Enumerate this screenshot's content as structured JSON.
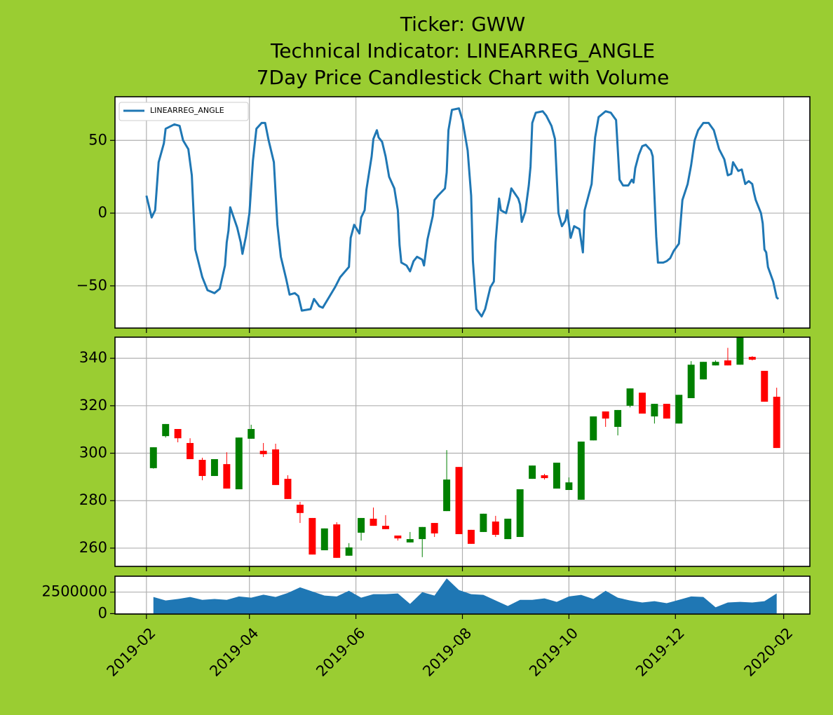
{
  "chart_data": [
    {
      "type": "line",
      "title": [
        "Ticker: GWW",
        "Technical Indicator: LINEARREG_ANGLE",
        "7Day Price Candlestick Chart with Volume"
      ],
      "xlim": [
        "2019-01-14",
        "2020-02-16"
      ],
      "ylim": [
        -79,
        80
      ],
      "yticks": [
        {
          "value": -50,
          "label": "−50"
        },
        0,
        50
      ],
      "grid": true,
      "legend": "upper left",
      "x": [
        "2019-02-01",
        "2019-02-04",
        "2019-02-06",
        "2019-02-08",
        "2019-02-11",
        "2019-02-12",
        "2019-02-17",
        "2019-02-20",
        "2019-02-22",
        "2019-02-25",
        "2019-02-27",
        "2019-03-01",
        "2019-03-05",
        "2019-03-08",
        "2019-03-12",
        "2019-03-15",
        "2019-03-18",
        "2019-03-19",
        "2019-03-20",
        "2019-03-21",
        "2019-03-23",
        "2019-03-25",
        "2019-03-27",
        "2019-03-28",
        "2019-03-30",
        "2019-04-01",
        "2019-04-03",
        "2019-04-05",
        "2019-04-08",
        "2019-04-10",
        "2019-04-12",
        "2019-04-15",
        "2019-04-17",
        "2019-04-19",
        "2019-04-22",
        "2019-04-24",
        "2019-04-27",
        "2019-04-29",
        "2019-05-01",
        "2019-05-06",
        "2019-05-08",
        "2019-05-11",
        "2019-05-13",
        "2019-05-16",
        "2019-05-20",
        "2019-05-23",
        "2019-05-28",
        "2019-05-29",
        "2019-05-31",
        "2019-06-03",
        "2019-06-04",
        "2019-06-06",
        "2019-06-07",
        "2019-06-10",
        "2019-06-11",
        "2019-06-13",
        "2019-06-14",
        "2019-06-16",
        "2019-06-18",
        "2019-06-20",
        "2019-06-23",
        "2019-06-25",
        "2019-06-26",
        "2019-06-27",
        "2019-06-30",
        "2019-07-02",
        "2019-07-04",
        "2019-07-06",
        "2019-07-09",
        "2019-07-10",
        "2019-07-12",
        "2019-07-15",
        "2019-07-16",
        "2019-07-18",
        "2019-07-22",
        "2019-07-23",
        "2019-07-24",
        "2019-07-26",
        "2019-07-30",
        "2019-08-01",
        "2019-08-04",
        "2019-08-06",
        "2019-08-07",
        "2019-08-09",
        "2019-08-12",
        "2019-08-14",
        "2019-08-17",
        "2019-08-19",
        "2019-08-20",
        "2019-08-22",
        "2019-08-23",
        "2019-08-26",
        "2019-08-28",
        "2019-08-29",
        "2019-09-02",
        "2019-09-03",
        "2019-09-04",
        "2019-09-06",
        "2019-09-08",
        "2019-09-09",
        "2019-09-10",
        "2019-09-12",
        "2019-09-16",
        "2019-09-18",
        "2019-09-21",
        "2019-09-23",
        "2019-09-25",
        "2019-09-27",
        "2019-09-29",
        "2019-09-30",
        "2019-10-02",
        "2019-10-04",
        "2019-10-07",
        "2019-10-09",
        "2019-10-10",
        "2019-10-14",
        "2019-10-16",
        "2019-10-18",
        "2019-10-20",
        "2019-10-22",
        "2019-10-25",
        "2019-10-28",
        "2019-10-30",
        "2019-11-01",
        "2019-11-04",
        "2019-11-06",
        "2019-11-07",
        "2019-11-08",
        "2019-11-10",
        "2019-11-12",
        "2019-11-14",
        "2019-11-17",
        "2019-11-18",
        "2019-11-20",
        "2019-11-21",
        "2019-11-24",
        "2019-11-26",
        "2019-11-28",
        "2019-11-30",
        "2019-12-03",
        "2019-12-05",
        "2019-12-08",
        "2019-12-10",
        "2019-12-12",
        "2019-12-14",
        "2019-12-17",
        "2019-12-20",
        "2019-12-23",
        "2019-12-26",
        "2019-12-29",
        "2019-12-31",
        "2020-01-02",
        "2020-01-03",
        "2020-01-06",
        "2020-01-08",
        "2020-01-10",
        "2020-01-12",
        "2020-01-14",
        "2020-01-15",
        "2020-01-16",
        "2020-01-19",
        "2020-01-20",
        "2020-01-21",
        "2020-01-22",
        "2020-01-23",
        "2020-01-26",
        "2020-01-28",
        "2020-01-29"
      ],
      "series": [
        {
          "name": "LINEARREG_ANGLE",
          "color": "#1f77b4",
          "values": [
            12,
            -3,
            2,
            35,
            48,
            58,
            61,
            60,
            50,
            44,
            26,
            -25,
            -44,
            -53,
            -55,
            -52,
            -36,
            -20,
            -12,
            4,
            -3,
            -10,
            -20,
            -28,
            -16,
            0,
            36,
            58,
            62,
            62,
            50,
            35,
            -8,
            -30,
            -45,
            -56,
            -55,
            -57,
            -67,
            -66,
            -59,
            -64,
            -65,
            -59,
            -51,
            -44,
            -37,
            -17,
            -8,
            -14,
            -3,
            2,
            16,
            39,
            51,
            57,
            52,
            49,
            39,
            25,
            17,
            2,
            -22,
            -34,
            -36,
            -40,
            -33,
            -30,
            -32,
            -36,
            -18,
            -2,
            9,
            12,
            17,
            28,
            57,
            71,
            72,
            64,
            43,
            12,
            -33,
            -66,
            -71,
            -66,
            -51,
            -47,
            -20,
            10,
            2,
            0,
            10,
            17,
            10,
            6,
            -6,
            1,
            19,
            32,
            62,
            69,
            70,
            67,
            60,
            51,
            0,
            -9,
            -5,
            2,
            -17,
            -9,
            -11,
            -27,
            2,
            20,
            52,
            66,
            68,
            70,
            69,
            64,
            23,
            19,
            19,
            23,
            21,
            31,
            40,
            46,
            47,
            43,
            39,
            -16,
            -34,
            -34,
            -33,
            -31,
            -26,
            -21,
            9,
            20,
            33,
            50,
            57,
            62,
            62,
            57,
            44,
            37,
            26,
            27,
            35,
            29,
            30,
            20,
            22,
            20,
            14,
            9,
            0,
            -7,
            -25,
            -27,
            -37,
            -47,
            -58,
            -59
          ]
        }
      ]
    },
    {
      "type": "candlestick",
      "xlim": [
        "2019-01-14",
        "2020-02-16"
      ],
      "ylim": [
        252.3,
        348.9
      ],
      "yticks": [
        260,
        280,
        300,
        320,
        340
      ],
      "grid": true,
      "up_color": "#008000",
      "down_color": "#ff0000",
      "x": [
        "2019-02-05",
        "2019-02-12",
        "2019-02-19",
        "2019-02-26",
        "2019-03-05",
        "2019-03-12",
        "2019-03-19",
        "2019-03-26",
        "2019-04-02",
        "2019-04-09",
        "2019-04-16",
        "2019-04-23",
        "2019-04-30",
        "2019-05-07",
        "2019-05-14",
        "2019-05-21",
        "2019-05-28",
        "2019-06-04",
        "2019-06-11",
        "2019-06-18",
        "2019-06-25",
        "2019-07-02",
        "2019-07-09",
        "2019-07-16",
        "2019-07-23",
        "2019-07-30",
        "2019-08-06",
        "2019-08-13",
        "2019-08-20",
        "2019-08-27",
        "2019-09-03",
        "2019-09-10",
        "2019-09-17",
        "2019-09-24",
        "2019-10-01",
        "2019-10-08",
        "2019-10-15",
        "2019-10-22",
        "2019-10-29",
        "2019-11-05",
        "2019-11-12",
        "2019-11-19",
        "2019-11-26",
        "2019-12-03",
        "2019-12-10",
        "2019-12-17",
        "2019-12-24",
        "2019-12-31",
        "2020-01-07",
        "2020-01-14",
        "2020-01-21",
        "2020-01-28"
      ],
      "open": [
        293.7,
        307.2,
        310.2,
        304.3,
        297.2,
        290.4,
        295.4,
        284.8,
        306.1,
        301.0,
        301.6,
        289.2,
        278.3,
        272.7,
        259.1,
        270.0,
        256.8,
        266.5,
        272.4,
        269.4,
        265.3,
        262.4,
        263.8,
        270.6,
        275.6,
        294.2,
        267.7,
        266.8,
        271.2,
        263.8,
        264.7,
        289.2,
        290.7,
        285.1,
        284.5,
        280.4,
        305.4,
        317.6,
        311.1,
        320.0,
        325.5,
        315.5,
        320.8,
        312.5,
        323.2,
        331.1,
        337.0,
        339.1,
        337.3,
        340.6,
        334.7,
        323.8
      ],
      "close": [
        302.5,
        312.3,
        306.3,
        297.5,
        290.4,
        297.5,
        285.1,
        306.6,
        310.2,
        299.6,
        286.6,
        280.7,
        274.8,
        257.3,
        268.3,
        255.9,
        260.3,
        272.7,
        269.4,
        268.0,
        264.1,
        263.8,
        268.9,
        266.2,
        288.9,
        265.9,
        261.8,
        274.5,
        265.6,
        272.4,
        284.8,
        294.8,
        289.5,
        296.0,
        287.7,
        304.9,
        315.5,
        314.6,
        318.2,
        327.3,
        316.7,
        320.8,
        314.6,
        324.6,
        337.3,
        338.5,
        338.5,
        337.0,
        350.0,
        339.4,
        321.7,
        302.2
      ],
      "high": [
        302.5,
        312.3,
        310.2,
        306.3,
        298.1,
        297.5,
        300.4,
        306.6,
        312.0,
        304.3,
        304.0,
        290.7,
        279.5,
        272.7,
        268.3,
        270.9,
        262.1,
        272.7,
        277.1,
        273.9,
        265.3,
        266.8,
        268.9,
        270.6,
        301.3,
        294.2,
        267.7,
        274.5,
        273.6,
        272.4,
        284.8,
        294.8,
        291.3,
        296.0,
        289.8,
        304.9,
        315.5,
        317.6,
        318.2,
        327.3,
        325.5,
        320.8,
        320.8,
        324.6,
        338.8,
        338.5,
        339.1,
        344.4,
        350.0,
        340.9,
        334.7,
        327.6
      ],
      "low": [
        293.5,
        306.6,
        304.6,
        297.5,
        288.6,
        290.4,
        285.1,
        284.8,
        306.1,
        298.4,
        286.6,
        280.7,
        270.6,
        257.3,
        259.1,
        255.9,
        256.8,
        263.2,
        269.4,
        268.0,
        263.2,
        262.4,
        256.2,
        264.7,
        275.6,
        265.9,
        261.8,
        266.8,
        264.7,
        263.8,
        264.7,
        289.2,
        288.9,
        285.1,
        284.5,
        280.4,
        305.4,
        311.1,
        307.5,
        319.3,
        316.7,
        312.5,
        314.6,
        312.5,
        323.2,
        331.1,
        337.0,
        337.0,
        337.3,
        339.1,
        321.7,
        302.2
      ]
    },
    {
      "type": "area",
      "xlim": [
        "2019-01-14",
        "2020-02-16"
      ],
      "ylim": [
        -50000,
        4350000
      ],
      "yticks": [
        0,
        2500000
      ],
      "xticks": [
        "2019-02",
        "2019-04",
        "2019-06",
        "2019-08",
        "2019-10",
        "2019-12",
        "2020-02"
      ],
      "grid": true,
      "color": "#1f77b4",
      "x": [
        "2019-02-05",
        "2019-02-12",
        "2019-02-19",
        "2019-02-26",
        "2019-03-05",
        "2019-03-12",
        "2019-03-19",
        "2019-03-26",
        "2019-04-02",
        "2019-04-09",
        "2019-04-16",
        "2019-04-23",
        "2019-04-30",
        "2019-05-07",
        "2019-05-14",
        "2019-05-21",
        "2019-05-28",
        "2019-06-04",
        "2019-06-11",
        "2019-06-18",
        "2019-06-25",
        "2019-07-02",
        "2019-07-09",
        "2019-07-16",
        "2019-07-23",
        "2019-07-30",
        "2019-08-06",
        "2019-08-13",
        "2019-08-20",
        "2019-08-27",
        "2019-09-03",
        "2019-09-10",
        "2019-09-17",
        "2019-09-24",
        "2019-10-01",
        "2019-10-08",
        "2019-10-15",
        "2019-10-22",
        "2019-10-29",
        "2019-11-05",
        "2019-11-12",
        "2019-11-19",
        "2019-11-26",
        "2019-12-03",
        "2019-12-10",
        "2019-12-17",
        "2019-12-24",
        "2019-12-31",
        "2020-01-07",
        "2020-01-14",
        "2020-01-21",
        "2020-01-28"
      ],
      "values": [
        1940000,
        1530000,
        1700000,
        1940000,
        1600000,
        1700000,
        1600000,
        2000000,
        1850000,
        2200000,
        1940000,
        2400000,
        3060000,
        2580000,
        2100000,
        2000000,
        2660000,
        1850000,
        2260000,
        2260000,
        2340000,
        1130000,
        2500000,
        2100000,
        4100000,
        2740000,
        2260000,
        2180000,
        1530000,
        890000,
        1600000,
        1600000,
        1770000,
        1370000,
        2000000,
        2180000,
        1700000,
        2660000,
        1850000,
        1530000,
        1290000,
        1450000,
        1210000,
        1600000,
        2000000,
        1940000,
        730000,
        1290000,
        1370000,
        1290000,
        1450000,
        2340000
      ]
    }
  ]
}
